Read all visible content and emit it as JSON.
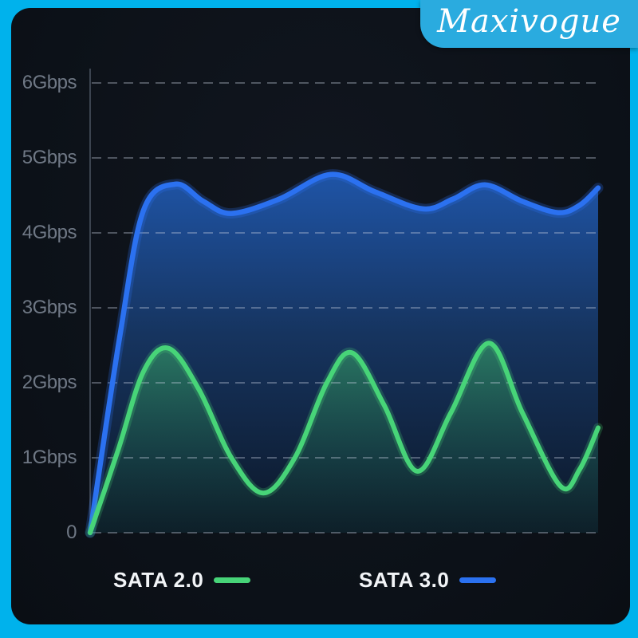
{
  "brand": {
    "name": "Maxivogue"
  },
  "colors": {
    "frame_cyan": "#00b2ec",
    "badge_cyan": "#2aabdf",
    "panel_dark": "#0d1119",
    "axis_gray": "#3b434f",
    "gridline": "rgba(200,210,225,0.35)",
    "tick_label_gray": "#6f7885",
    "legend_text": "#f2f4f7",
    "sata20_green": "#47d478",
    "sata30_blue": "#2b71f0"
  },
  "chart_data": {
    "type": "area",
    "title": "",
    "xlabel": "",
    "ylabel": "",
    "grid": "dashed horizontal gridlines, no vertical grid, left axis line only",
    "legend_position": "bottom",
    "y_axis": {
      "unit": "Gbps",
      "min": 0,
      "max": 6,
      "tick_values": [
        6,
        5,
        4,
        3,
        2,
        1,
        0
      ],
      "tick_labels": [
        "6Gbps",
        "5Gbps",
        "4Gbps",
        "3Gbps",
        "2Gbps",
        "1Gbps",
        "0"
      ]
    },
    "x_axis": {
      "note": "no tick labels; x expressed as fraction 0-1 of plot width"
    },
    "series": [
      {
        "name": "SATA 2.0",
        "color": "#47d478",
        "points": [
          [
            0,
            0
          ],
          [
            0.055,
            1.1
          ],
          [
            0.105,
            2.15
          ],
          [
            0.155,
            2.46
          ],
          [
            0.215,
            1.9
          ],
          [
            0.278,
            1.0
          ],
          [
            0.341,
            0.53
          ],
          [
            0.403,
            1.0
          ],
          [
            0.466,
            2.0
          ],
          [
            0.516,
            2.4
          ],
          [
            0.579,
            1.7
          ],
          [
            0.644,
            0.82
          ],
          [
            0.71,
            1.6
          ],
          [
            0.785,
            2.53
          ],
          [
            0.851,
            1.6
          ],
          [
            0.926,
            0.62
          ],
          [
            0.964,
            0.85
          ],
          [
            1,
            1.4
          ]
        ]
      },
      {
        "name": "SATA 3.0",
        "color": "#2b71f0",
        "points": [
          [
            0,
            0
          ],
          [
            0.058,
            2.6
          ],
          [
            0.105,
            4.3
          ],
          [
            0.168,
            4.65
          ],
          [
            0.223,
            4.42
          ],
          [
            0.278,
            4.26
          ],
          [
            0.372,
            4.45
          ],
          [
            0.474,
            4.78
          ],
          [
            0.56,
            4.55
          ],
          [
            0.655,
            4.32
          ],
          [
            0.714,
            4.45
          ],
          [
            0.777,
            4.64
          ],
          [
            0.851,
            4.42
          ],
          [
            0.921,
            4.27
          ],
          [
            0.964,
            4.37
          ],
          [
            1,
            4.6
          ]
        ]
      }
    ],
    "legend": [
      {
        "label": "SATA 2.0",
        "color": "#47d478"
      },
      {
        "label": "SATA 3.0",
        "color": "#2b71f0"
      }
    ]
  }
}
